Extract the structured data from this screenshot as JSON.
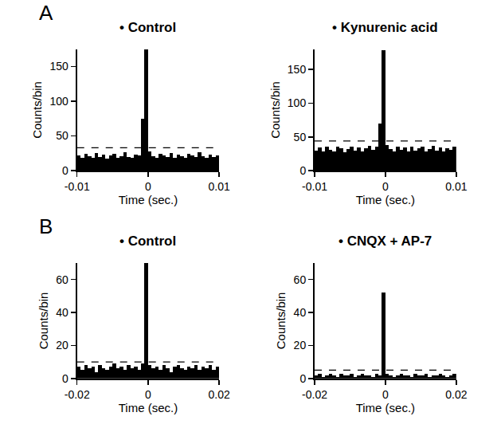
{
  "chart_data": [
    {
      "type": "histogram",
      "panel": "A",
      "title": "• Control",
      "x_label": "Time (sec.)",
      "y_label": "Counts/bin",
      "bins": [
        -0.01,
        -0.0095,
        -0.009,
        -0.0085,
        -0.008,
        -0.0075,
        -0.007,
        -0.0065,
        -0.006,
        -0.0055,
        -0.005,
        -0.0045,
        -0.004,
        -0.0035,
        -0.003,
        -0.0025,
        -0.002,
        -0.0015,
        -0.001,
        -0.0005,
        0,
        0.0005,
        0.001,
        0.0015,
        0.002,
        0.0025,
        0.003,
        0.0035,
        0.004,
        0.0045,
        0.005,
        0.0055,
        0.006,
        0.0065,
        0.007,
        0.0075,
        0.008,
        0.0085,
        0.009,
        0.0095,
        0.01
      ],
      "counts": [
        22,
        19,
        24,
        21,
        18,
        25,
        20,
        23,
        17,
        22,
        24,
        19,
        21,
        26,
        20,
        18,
        23,
        22,
        75,
        175,
        28,
        21,
        19,
        24,
        22,
        20,
        25,
        18,
        23,
        21,
        19,
        24,
        22,
        20,
        26,
        21,
        18,
        23,
        20,
        22
      ],
      "threshold": 33,
      "color": "#000000",
      "grid": false,
      "xlim": [
        -0.01,
        0.01
      ],
      "xticks": [
        -0.01,
        0,
        0.01
      ],
      "ylim": [
        0,
        175
      ],
      "yticks": [
        0,
        50,
        100,
        150
      ]
    },
    {
      "type": "histogram",
      "title": "• Kynurenic acid",
      "x_label": "Time (sec.)",
      "y_label": "Counts/bin",
      "bins": [
        -0.01,
        -0.0095,
        -0.009,
        -0.0085,
        -0.008,
        -0.0075,
        -0.007,
        -0.0065,
        -0.006,
        -0.0055,
        -0.005,
        -0.0045,
        -0.004,
        -0.0035,
        -0.003,
        -0.0025,
        -0.002,
        -0.0015,
        -0.001,
        -0.0005,
        0,
        0.0005,
        0.001,
        0.0015,
        0.002,
        0.0025,
        0.003,
        0.0035,
        0.004,
        0.0045,
        0.005,
        0.0055,
        0.006,
        0.0065,
        0.007,
        0.0075,
        0.008,
        0.0085,
        0.009,
        0.0095,
        0.01
      ],
      "counts": [
        30,
        34,
        28,
        36,
        31,
        29,
        35,
        33,
        27,
        32,
        36,
        30,
        34,
        29,
        33,
        37,
        31,
        35,
        70,
        178,
        38,
        32,
        29,
        35,
        31,
        34,
        28,
        36,
        30,
        33,
        35,
        29,
        32,
        37,
        30,
        34,
        28,
        33,
        31,
        35
      ],
      "threshold": 44,
      "color": "#000000",
      "grid": false,
      "xlim": [
        -0.01,
        0.01
      ],
      "xticks": [
        -0.01,
        0,
        0.01
      ],
      "ylim": [
        0,
        180
      ],
      "yticks": [
        0,
        50,
        100,
        150
      ]
    },
    {
      "type": "histogram",
      "panel": "B",
      "title": "• Control",
      "x_label": "Time (sec.)",
      "y_label": "Counts/bin",
      "bins": [
        -0.02,
        -0.019,
        -0.018,
        -0.017,
        -0.016,
        -0.015,
        -0.014,
        -0.013,
        -0.012,
        -0.011,
        -0.01,
        -0.009,
        -0.008,
        -0.007,
        -0.006,
        -0.005,
        -0.004,
        -0.003,
        -0.002,
        -0.001,
        0,
        0.001,
        0.002,
        0.003,
        0.004,
        0.005,
        0.006,
        0.007,
        0.008,
        0.009,
        0.01,
        0.011,
        0.012,
        0.013,
        0.014,
        0.015,
        0.016,
        0.017,
        0.018,
        0.019,
        0.02
      ],
      "counts": [
        7,
        5,
        8,
        6,
        7,
        4,
        8,
        6,
        5,
        7,
        9,
        6,
        7,
        5,
        8,
        6,
        7,
        5,
        9,
        70,
        8,
        6,
        7,
        5,
        8,
        6,
        4,
        7,
        8,
        6,
        5,
        7,
        6,
        8,
        5,
        7,
        6,
        8,
        5,
        7
      ],
      "threshold": 10,
      "color": "#000000",
      "grid": false,
      "xlim": [
        -0.02,
        0.02
      ],
      "xticks": [
        -0.02,
        0,
        0.02
      ],
      "ylim": [
        0,
        70
      ],
      "yticks": [
        0,
        20,
        40,
        60
      ]
    },
    {
      "type": "histogram",
      "title": "• CNQX + AP-7",
      "x_label": "Time (sec.)",
      "y_label": "Counts/bin",
      "bins": [
        -0.02,
        -0.019,
        -0.018,
        -0.017,
        -0.016,
        -0.015,
        -0.014,
        -0.013,
        -0.012,
        -0.011,
        -0.01,
        -0.009,
        -0.008,
        -0.007,
        -0.006,
        -0.005,
        -0.004,
        -0.003,
        -0.002,
        -0.001,
        0,
        0.001,
        0.002,
        0.003,
        0.004,
        0.005,
        0.006,
        0.007,
        0.008,
        0.009,
        0.01,
        0.011,
        0.012,
        0.013,
        0.014,
        0.015,
        0.016,
        0.017,
        0.018,
        0.019,
        0.02
      ],
      "counts": [
        2,
        3,
        1,
        2,
        3,
        2,
        1,
        3,
        2,
        2,
        3,
        1,
        2,
        3,
        2,
        2,
        1,
        3,
        2,
        52,
        3,
        2,
        1,
        2,
        3,
        2,
        2,
        1,
        3,
        2,
        2,
        3,
        1,
        2,
        2,
        3,
        2,
        1,
        2,
        3
      ],
      "threshold": 5,
      "color": "#000000",
      "grid": false,
      "xlim": [
        -0.02,
        0.02
      ],
      "xticks": [
        -0.02,
        0,
        0.02
      ],
      "ylim": [
        0,
        70
      ],
      "yticks": [
        0,
        20,
        40,
        60
      ]
    }
  ]
}
